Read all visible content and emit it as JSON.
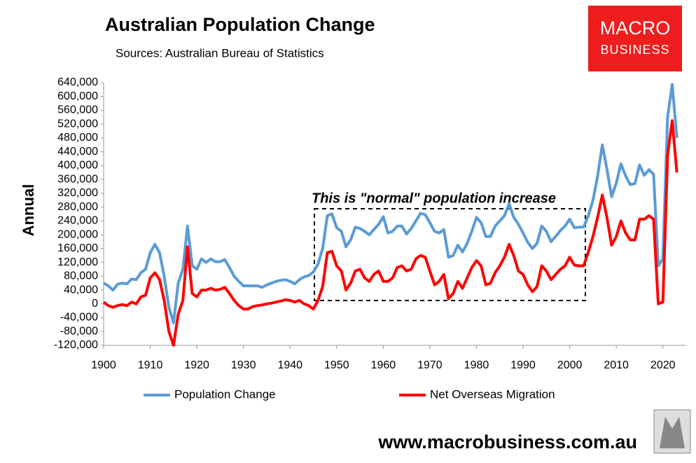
{
  "chart_data": {
    "type": "line",
    "title": "Australian Population Change",
    "subtitle": "Sources: Australian Bureau of Statistics",
    "y_label": "Annual",
    "annotation": "This is \"normal\" population increase",
    "logo": [
      "MACRO",
      "BUSINESS"
    ],
    "footer": "www.macrobusiness.com.au",
    "legend": "bottom",
    "grid": false,
    "x": [
      1900,
      1901,
      1902,
      1903,
      1904,
      1905,
      1906,
      1907,
      1908,
      1909,
      1910,
      1911,
      1912,
      1913,
      1914,
      1915,
      1916,
      1917,
      1918,
      1919,
      1920,
      1921,
      1922,
      1923,
      1924,
      1925,
      1926,
      1927,
      1928,
      1929,
      1930,
      1931,
      1932,
      1933,
      1934,
      1935,
      1936,
      1937,
      1938,
      1939,
      1940,
      1941,
      1942,
      1943,
      1944,
      1945,
      1946,
      1947,
      1948,
      1949,
      1950,
      1951,
      1952,
      1953,
      1954,
      1955,
      1956,
      1957,
      1958,
      1959,
      1960,
      1961,
      1962,
      1963,
      1964,
      1965,
      1966,
      1967,
      1968,
      1969,
      1970,
      1971,
      1972,
      1973,
      1974,
      1975,
      1976,
      1977,
      1978,
      1979,
      1980,
      1981,
      1982,
      1983,
      1984,
      1985,
      1986,
      1987,
      1988,
      1989,
      1990,
      1991,
      1992,
      1993,
      1994,
      1995,
      1996,
      1997,
      1998,
      1999,
      2000,
      2001,
      2002,
      2003,
      2004,
      2005,
      2006,
      2007,
      2008,
      2009,
      2010,
      2011,
      2012,
      2013,
      2014,
      2015,
      2016,
      2017,
      2018,
      2019,
      2020,
      2021,
      2022,
      2023
    ],
    "series": [
      {
        "name": "Population Change",
        "color": "#5b9bd5",
        "values": [
          60000,
          52000,
          40000,
          57000,
          60000,
          58000,
          72000,
          70000,
          90000,
          100000,
          148000,
          172000,
          148000,
          80000,
          -10000,
          -55000,
          60000,
          100000,
          225000,
          110000,
          100000,
          130000,
          120000,
          130000,
          122000,
          122000,
          128000,
          105000,
          80000,
          65000,
          52000,
          52000,
          52000,
          52000,
          48000,
          55000,
          60000,
          65000,
          68000,
          70000,
          65000,
          58000,
          70000,
          78000,
          82000,
          92000,
          115000,
          160000,
          255000,
          260000,
          220000,
          210000,
          165000,
          185000,
          222000,
          218000,
          210000,
          200000,
          215000,
          230000,
          252000,
          205000,
          210000,
          225000,
          225000,
          202000,
          218000,
          240000,
          262000,
          258000,
          235000,
          210000,
          205000,
          215000,
          135000,
          140000,
          170000,
          150000,
          175000,
          210000,
          250000,
          235000,
          195000,
          195000,
          225000,
          240000,
          255000,
          290000,
          250000,
          230000,
          205000,
          178000,
          160000,
          175000,
          225000,
          210000,
          180000,
          195000,
          212000,
          225000,
          245000,
          220000,
          222000,
          222000,
          255000,
          300000,
          370000,
          460000,
          390000,
          310000,
          350000,
          405000,
          370000,
          345000,
          348000,
          402000,
          372000,
          388000,
          375000,
          110000,
          130000,
          540000,
          635000,
          480000
        ]
      },
      {
        "name": "Net Overseas Migration",
        "color": "#ff0000",
        "values": [
          5000,
          -5000,
          -10000,
          -5000,
          -2000,
          -5000,
          5000,
          0,
          20000,
          25000,
          75000,
          90000,
          70000,
          10000,
          -80000,
          -120000,
          -30000,
          10000,
          165000,
          30000,
          20000,
          40000,
          40000,
          45000,
          40000,
          42000,
          48000,
          30000,
          10000,
          -5000,
          -15000,
          -15000,
          -8000,
          -5000,
          -3000,
          0,
          2000,
          5000,
          8000,
          12000,
          10000,
          5000,
          10000,
          0,
          -5000,
          -15000,
          10000,
          50000,
          148000,
          152000,
          110000,
          95000,
          40000,
          60000,
          95000,
          100000,
          75000,
          65000,
          85000,
          95000,
          65000,
          65000,
          75000,
          105000,
          110000,
          95000,
          100000,
          130000,
          140000,
          135000,
          95000,
          55000,
          65000,
          85000,
          15000,
          30000,
          65000,
          45000,
          75000,
          105000,
          125000,
          110000,
          55000,
          60000,
          90000,
          110000,
          135000,
          172000,
          140000,
          95000,
          85000,
          55000,
          35000,
          50000,
          110000,
          95000,
          70000,
          85000,
          100000,
          110000,
          135000,
          112000,
          110000,
          110000,
          150000,
          195000,
          250000,
          315000,
          250000,
          170000,
          195000,
          240000,
          205000,
          185000,
          185000,
          245000,
          245000,
          255000,
          245000,
          0,
          5000,
          430000,
          530000,
          380000
        ]
      }
    ],
    "xlim": [
      1900,
      2025
    ],
    "xticks": [
      1900,
      1910,
      1920,
      1930,
      1940,
      1950,
      1960,
      1970,
      1980,
      1990,
      2000,
      2010,
      2020
    ],
    "ylim": [
      -120000,
      640000
    ],
    "yticks": [
      {
        "value": -120000,
        "label": "-120,000"
      },
      {
        "value": -80000,
        "label": "-80,000"
      },
      {
        "value": -40000,
        "label": "-40,000"
      },
      0,
      {
        "value": 40000,
        "label": "40,000"
      },
      {
        "value": 80000,
        "label": "80,000"
      },
      {
        "value": 120000,
        "label": "120,000"
      },
      {
        "value": 160000,
        "label": "160,000"
      },
      {
        "value": 200000,
        "label": "200,000"
      },
      {
        "value": 240000,
        "label": "240,000"
      },
      {
        "value": 280000,
        "label": "280,000"
      },
      {
        "value": 320000,
        "label": "320,000"
      },
      {
        "value": 360000,
        "label": "360,000"
      },
      {
        "value": 400000,
        "label": "400,000"
      },
      {
        "value": 440000,
        "label": "440,000"
      },
      {
        "value": 480000,
        "label": "480,000"
      },
      {
        "value": 520000,
        "label": "520,000"
      },
      {
        "value": 560000,
        "label": "560,000"
      },
      {
        "value": 600000,
        "label": "600,000"
      },
      {
        "value": 640000,
        "label": "640,000"
      }
    ]
  }
}
